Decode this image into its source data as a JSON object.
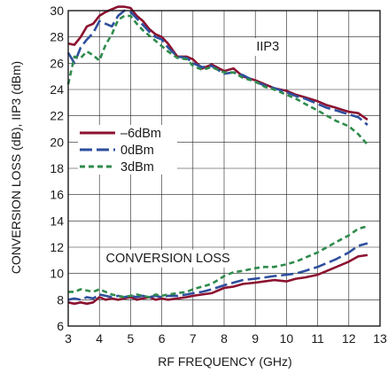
{
  "chart_data": {
    "type": "line",
    "title": "",
    "xlabel": "RF FREQUENCY (GHz)",
    "ylabel": "CONVERSION LOSS (dB), IIP3 (dBm)",
    "xlim": [
      3,
      13
    ],
    "ylim": [
      6,
      30
    ],
    "xticks": [
      3,
      4,
      5,
      6,
      7,
      8,
      9,
      10,
      11,
      12,
      13
    ],
    "yticks": [
      6,
      8,
      10,
      12,
      14,
      16,
      18,
      20,
      22,
      24,
      26,
      28,
      30
    ],
    "grid": true,
    "legend": {
      "placement": "middle-left"
    },
    "annotations": [
      {
        "text": "IIP3",
        "x": 9.4,
        "y": 27.3
      },
      {
        "text": "CONVERSION LOSS",
        "x": 6.2,
        "y": 11.2
      }
    ],
    "series": [
      {
        "name": "–6dBm",
        "color": "#8b1230",
        "dash": "solid",
        "group": "IIP3",
        "x": [
          3,
          3.2,
          3.4,
          3.6,
          3.8,
          4,
          4.2,
          4.4,
          4.6,
          4.8,
          5,
          5.2,
          5.4,
          5.6,
          5.8,
          6,
          6.2,
          6.5,
          6.8,
          7,
          7.3,
          7.6,
          8,
          8.3,
          8.6,
          9,
          9.3,
          9.6,
          10,
          10.3,
          10.6,
          11,
          11.3,
          11.6,
          12,
          12.3,
          12.6
        ],
        "y": [
          27.5,
          27.4,
          28.0,
          28.8,
          29.0,
          29.6,
          29.9,
          30.1,
          30.3,
          30.3,
          30.2,
          29.6,
          29.2,
          28.6,
          28.2,
          28.0,
          27.5,
          26.5,
          26.5,
          26.3,
          25.6,
          25.9,
          25.4,
          25.6,
          25.0,
          24.7,
          24.4,
          24.1,
          23.9,
          23.6,
          23.4,
          23.1,
          22.8,
          22.6,
          22.3,
          22.2,
          21.7
        ]
      },
      {
        "name": "0dBm",
        "color": "#2e4f9e",
        "dash": "long-dash",
        "group": "IIP3",
        "x": [
          3,
          3.2,
          3.4,
          3.6,
          3.8,
          4,
          4.2,
          4.4,
          4.6,
          4.8,
          5,
          5.2,
          5.4,
          5.6,
          5.8,
          6,
          6.2,
          6.5,
          6.8,
          7,
          7.3,
          7.6,
          8,
          8.3,
          8.6,
          9,
          9.3,
          9.6,
          10,
          10.3,
          10.6,
          11,
          11.3,
          11.6,
          12,
          12.3,
          12.6
        ],
        "y": [
          26.8,
          26.0,
          27.2,
          27.8,
          28.3,
          29.2,
          29.0,
          28.8,
          29.6,
          30.0,
          29.9,
          29.4,
          28.9,
          28.4,
          28.0,
          27.8,
          27.2,
          26.5,
          26.4,
          26.0,
          25.7,
          25.8,
          25.2,
          25.3,
          25.1,
          24.6,
          24.3,
          24.1,
          23.8,
          23.5,
          23.3,
          22.9,
          22.6,
          22.4,
          22.1,
          21.9,
          21.3
        ]
      },
      {
        "name": "3dBm",
        "color": "#2f8b4c",
        "dash": "short-dash",
        "group": "IIP3",
        "x": [
          3,
          3.2,
          3.4,
          3.6,
          3.8,
          4,
          4.2,
          4.4,
          4.6,
          4.8,
          5,
          5.2,
          5.4,
          5.6,
          5.8,
          6,
          6.2,
          6.5,
          6.8,
          7,
          7.3,
          7.6,
          8,
          8.3,
          8.6,
          9,
          9.3,
          9.6,
          10,
          10.3,
          10.6,
          11,
          11.3,
          11.6,
          12,
          12.3,
          12.6
        ],
        "y": [
          24.4,
          26.5,
          26.4,
          26.9,
          26.6,
          26.2,
          27.4,
          28.2,
          29.3,
          29.6,
          29.6,
          29.0,
          28.5,
          28.1,
          27.7,
          27.3,
          26.9,
          26.4,
          26.3,
          25.8,
          25.5,
          25.7,
          25.3,
          25.3,
          24.9,
          24.6,
          24.2,
          24.0,
          23.6,
          23.3,
          22.9,
          22.4,
          22.0,
          21.6,
          21.2,
          20.6,
          19.8
        ]
      },
      {
        "name": "–6dBm",
        "color": "#8b1230",
        "dash": "solid",
        "group": "CONVERSION LOSS",
        "x": [
          3,
          3.2,
          3.4,
          3.6,
          3.8,
          4,
          4.2,
          4.4,
          4.6,
          4.8,
          5,
          5.2,
          5.4,
          5.6,
          5.8,
          6,
          6.2,
          6.5,
          6.8,
          7,
          7.3,
          7.6,
          8,
          8.3,
          8.6,
          9,
          9.3,
          9.6,
          10,
          10.3,
          10.6,
          11,
          11.3,
          11.6,
          12,
          12.3,
          12.6
        ],
        "y": [
          7.8,
          7.7,
          7.8,
          7.7,
          7.8,
          8.2,
          8.0,
          8.1,
          8.0,
          8.1,
          8.2,
          8.0,
          8.1,
          8.2,
          8.0,
          8.1,
          8.0,
          8.1,
          8.2,
          8.3,
          8.4,
          8.5,
          8.9,
          9.0,
          9.2,
          9.3,
          9.4,
          9.5,
          9.4,
          9.6,
          9.7,
          9.9,
          10.2,
          10.5,
          10.9,
          11.3,
          11.4
        ]
      },
      {
        "name": "0dBm",
        "color": "#2e4f9e",
        "dash": "long-dash",
        "group": "CONVERSION LOSS",
        "x": [
          3,
          3.2,
          3.4,
          3.6,
          3.8,
          4,
          4.2,
          4.4,
          4.6,
          4.8,
          5,
          5.2,
          5.4,
          5.6,
          5.8,
          6,
          6.2,
          6.5,
          6.8,
          7,
          7.3,
          7.6,
          8,
          8.3,
          8.6,
          9,
          9.3,
          9.6,
          10,
          10.3,
          10.6,
          11,
          11.3,
          11.6,
          12,
          12.3,
          12.6
        ],
        "y": [
          8.0,
          8.1,
          8.0,
          8.2,
          8.1,
          8.4,
          8.3,
          8.2,
          8.3,
          8.2,
          8.3,
          8.2,
          8.3,
          8.2,
          8.3,
          8.2,
          8.3,
          8.3,
          8.4,
          8.5,
          8.6,
          8.8,
          9.1,
          9.3,
          9.5,
          9.6,
          9.7,
          9.8,
          9.9,
          10.0,
          10.2,
          10.5,
          10.8,
          11.1,
          11.6,
          12.1,
          12.3
        ]
      },
      {
        "name": "3dBm",
        "color": "#2f8b4c",
        "dash": "short-dash",
        "group": "CONVERSION LOSS",
        "x": [
          3,
          3.2,
          3.4,
          3.6,
          3.8,
          4,
          4.2,
          4.4,
          4.6,
          4.8,
          5,
          5.2,
          5.4,
          5.6,
          5.8,
          6,
          6.2,
          6.5,
          6.8,
          7,
          7.3,
          7.6,
          8,
          8.3,
          8.6,
          9,
          9.3,
          9.6,
          10,
          10.3,
          10.6,
          11,
          11.3,
          11.6,
          12,
          12.3,
          12.6
        ],
        "y": [
          8.6,
          8.6,
          8.8,
          8.7,
          8.6,
          8.8,
          8.6,
          8.4,
          8.3,
          8.2,
          8.3,
          8.4,
          8.3,
          8.2,
          8.4,
          8.3,
          8.4,
          8.5,
          8.6,
          8.8,
          9.0,
          9.2,
          9.8,
          10.1,
          10.2,
          10.4,
          10.5,
          10.5,
          10.7,
          10.9,
          11.2,
          11.6,
          12.0,
          12.4,
          12.9,
          13.4,
          13.6
        ]
      }
    ]
  }
}
